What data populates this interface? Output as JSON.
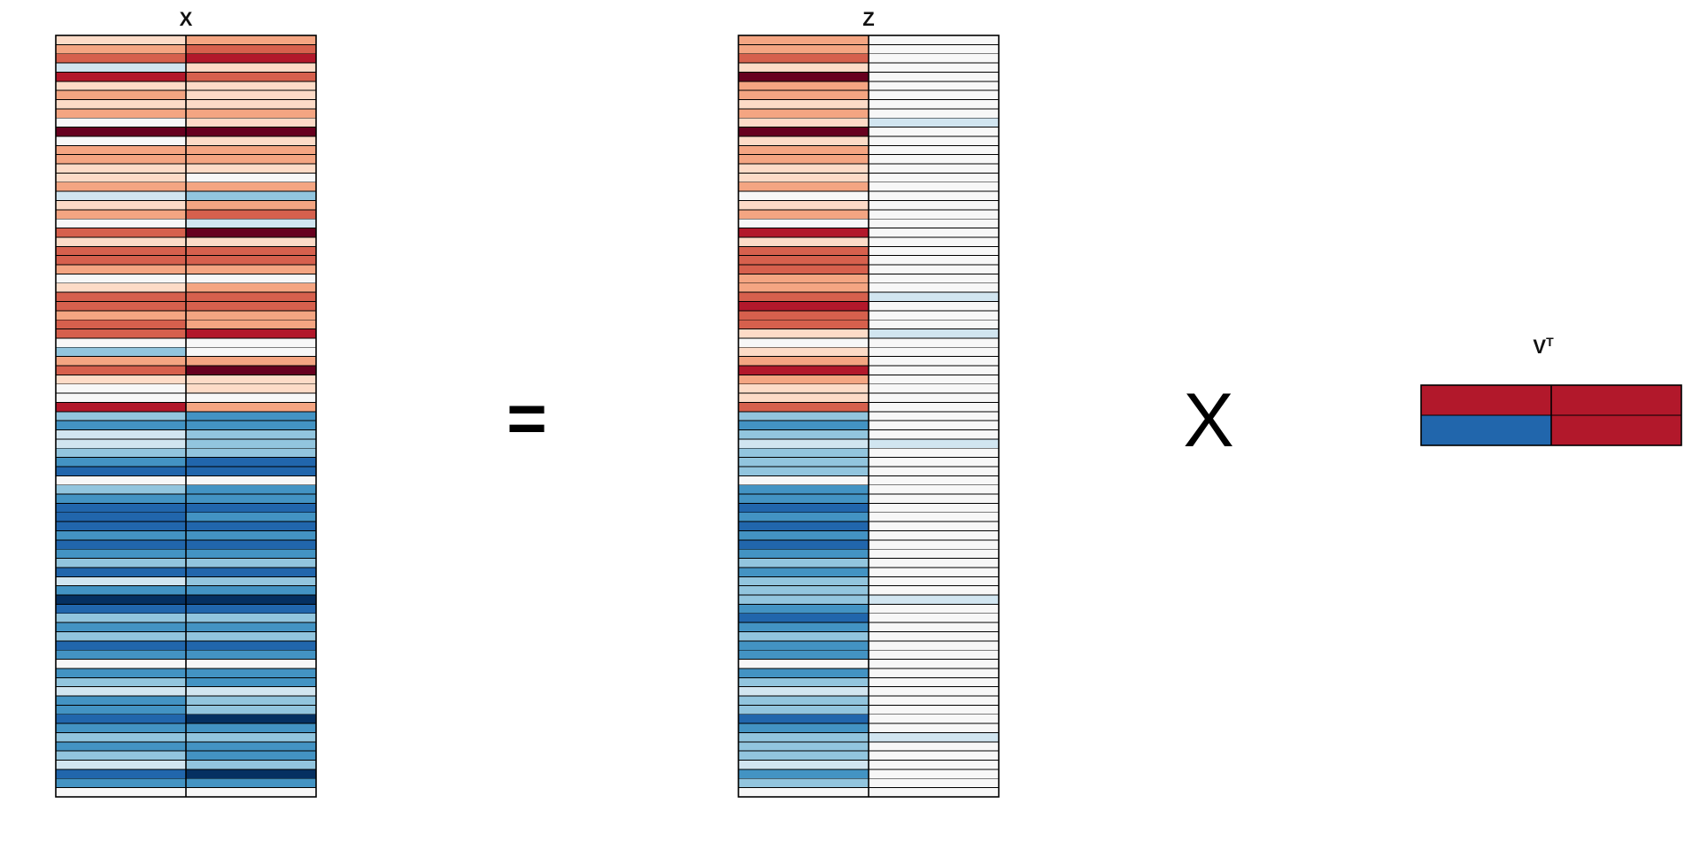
{
  "colors": {
    "palette": [
      "#053061",
      "#2166ac",
      "#4393c3",
      "#92c5de",
      "#d1e5f0",
      "#f7f7f7",
      "#fddbc7",
      "#f4a582",
      "#d6604d",
      "#b2182b",
      "#67001f"
    ],
    "grid": "#000000",
    "panel_bg": "#ffffff"
  },
  "operators": {
    "equals": "=",
    "times": "X"
  },
  "matrices": {
    "x": {
      "title": "X",
      "rows": [
        [
          6,
          7
        ],
        [
          7,
          8
        ],
        [
          8,
          9
        ],
        [
          4,
          6
        ],
        [
          9,
          8
        ],
        [
          6,
          6
        ],
        [
          7,
          6
        ],
        [
          6,
          6
        ],
        [
          7,
          7
        ],
        [
          5,
          6
        ],
        [
          10,
          10
        ],
        [
          5,
          6
        ],
        [
          7,
          7
        ],
        [
          7,
          7
        ],
        [
          6,
          6
        ],
        [
          6,
          5
        ],
        [
          7,
          7
        ],
        [
          4,
          3
        ],
        [
          6,
          7
        ],
        [
          7,
          8
        ],
        [
          5,
          4
        ],
        [
          8,
          10
        ],
        [
          6,
          6
        ],
        [
          8,
          8
        ],
        [
          8,
          8
        ],
        [
          7,
          7
        ],
        [
          5,
          5
        ],
        [
          6,
          7
        ],
        [
          8,
          8
        ],
        [
          8,
          8
        ],
        [
          7,
          7
        ],
        [
          8,
          7
        ],
        [
          8,
          9
        ],
        [
          5,
          5
        ],
        [
          3,
          5
        ],
        [
          7,
          7
        ],
        [
          8,
          10
        ],
        [
          6,
          6
        ],
        [
          5,
          6
        ],
        [
          5,
          5
        ],
        [
          9,
          7
        ],
        [
          3,
          2
        ],
        [
          2,
          2
        ],
        [
          4,
          3
        ],
        [
          4,
          3
        ],
        [
          3,
          3
        ],
        [
          2,
          1
        ],
        [
          1,
          1
        ],
        [
          5,
          5
        ],
        [
          3,
          2
        ],
        [
          2,
          2
        ],
        [
          1,
          1
        ],
        [
          1,
          2
        ],
        [
          1,
          1
        ],
        [
          2,
          2
        ],
        [
          1,
          1
        ],
        [
          2,
          2
        ],
        [
          3,
          3
        ],
        [
          1,
          1
        ],
        [
          4,
          3
        ],
        [
          2,
          2
        ],
        [
          0,
          0
        ],
        [
          1,
          1
        ],
        [
          3,
          3
        ],
        [
          2,
          2
        ],
        [
          3,
          3
        ],
        [
          1,
          1
        ],
        [
          2,
          2
        ],
        [
          5,
          5
        ],
        [
          2,
          2
        ],
        [
          3,
          2
        ],
        [
          4,
          4
        ],
        [
          2,
          3
        ],
        [
          2,
          3
        ],
        [
          1,
          0
        ],
        [
          2,
          2
        ],
        [
          3,
          3
        ],
        [
          2,
          2
        ],
        [
          3,
          2
        ],
        [
          4,
          3
        ],
        [
          1,
          0
        ],
        [
          2,
          2
        ],
        [
          5,
          5
        ]
      ]
    },
    "z": {
      "title": "Z",
      "rows": [
        [
          7,
          5
        ],
        [
          7,
          5
        ],
        [
          8,
          5
        ],
        [
          6,
          5
        ],
        [
          10,
          5
        ],
        [
          7,
          5
        ],
        [
          7,
          5
        ],
        [
          6,
          5
        ],
        [
          7,
          5
        ],
        [
          6,
          4
        ],
        [
          10,
          5
        ],
        [
          6,
          5
        ],
        [
          7,
          5
        ],
        [
          7,
          5
        ],
        [
          6,
          5
        ],
        [
          6,
          5
        ],
        [
          7,
          5
        ],
        [
          5,
          5
        ],
        [
          6,
          5
        ],
        [
          7,
          5
        ],
        [
          5,
          5
        ],
        [
          9,
          5
        ],
        [
          6,
          5
        ],
        [
          8,
          5
        ],
        [
          8,
          5
        ],
        [
          8,
          5
        ],
        [
          7,
          5
        ],
        [
          7,
          5
        ],
        [
          8,
          4
        ],
        [
          9,
          5
        ],
        [
          8,
          5
        ],
        [
          8,
          5
        ],
        [
          6,
          4
        ],
        [
          5,
          5
        ],
        [
          6,
          5
        ],
        [
          7,
          5
        ],
        [
          9,
          5
        ],
        [
          7,
          5
        ],
        [
          6,
          5
        ],
        [
          6,
          5
        ],
        [
          8,
          5
        ],
        [
          3,
          5
        ],
        [
          2,
          5
        ],
        [
          3,
          5
        ],
        [
          4,
          4
        ],
        [
          3,
          5
        ],
        [
          3,
          5
        ],
        [
          3,
          5
        ],
        [
          5,
          5
        ],
        [
          2,
          5
        ],
        [
          2,
          5
        ],
        [
          1,
          5
        ],
        [
          2,
          5
        ],
        [
          1,
          5
        ],
        [
          2,
          5
        ],
        [
          1,
          5
        ],
        [
          2,
          5
        ],
        [
          3,
          5
        ],
        [
          2,
          5
        ],
        [
          3,
          5
        ],
        [
          3,
          5
        ],
        [
          3,
          4
        ],
        [
          2,
          5
        ],
        [
          1,
          5
        ],
        [
          2,
          5
        ],
        [
          3,
          5
        ],
        [
          2,
          5
        ],
        [
          2,
          5
        ],
        [
          5,
          5
        ],
        [
          2,
          5
        ],
        [
          3,
          5
        ],
        [
          4,
          5
        ],
        [
          3,
          5
        ],
        [
          3,
          5
        ],
        [
          1,
          5
        ],
        [
          2,
          5
        ],
        [
          3,
          4
        ],
        [
          3,
          5
        ],
        [
          3,
          5
        ],
        [
          4,
          5
        ],
        [
          2,
          5
        ],
        [
          3,
          5
        ],
        [
          5,
          5
        ]
      ]
    },
    "vt": {
      "title": "V",
      "title_superscript": "T",
      "rows": [
        [
          9,
          9
        ],
        [
          1,
          9
        ]
      ]
    }
  }
}
